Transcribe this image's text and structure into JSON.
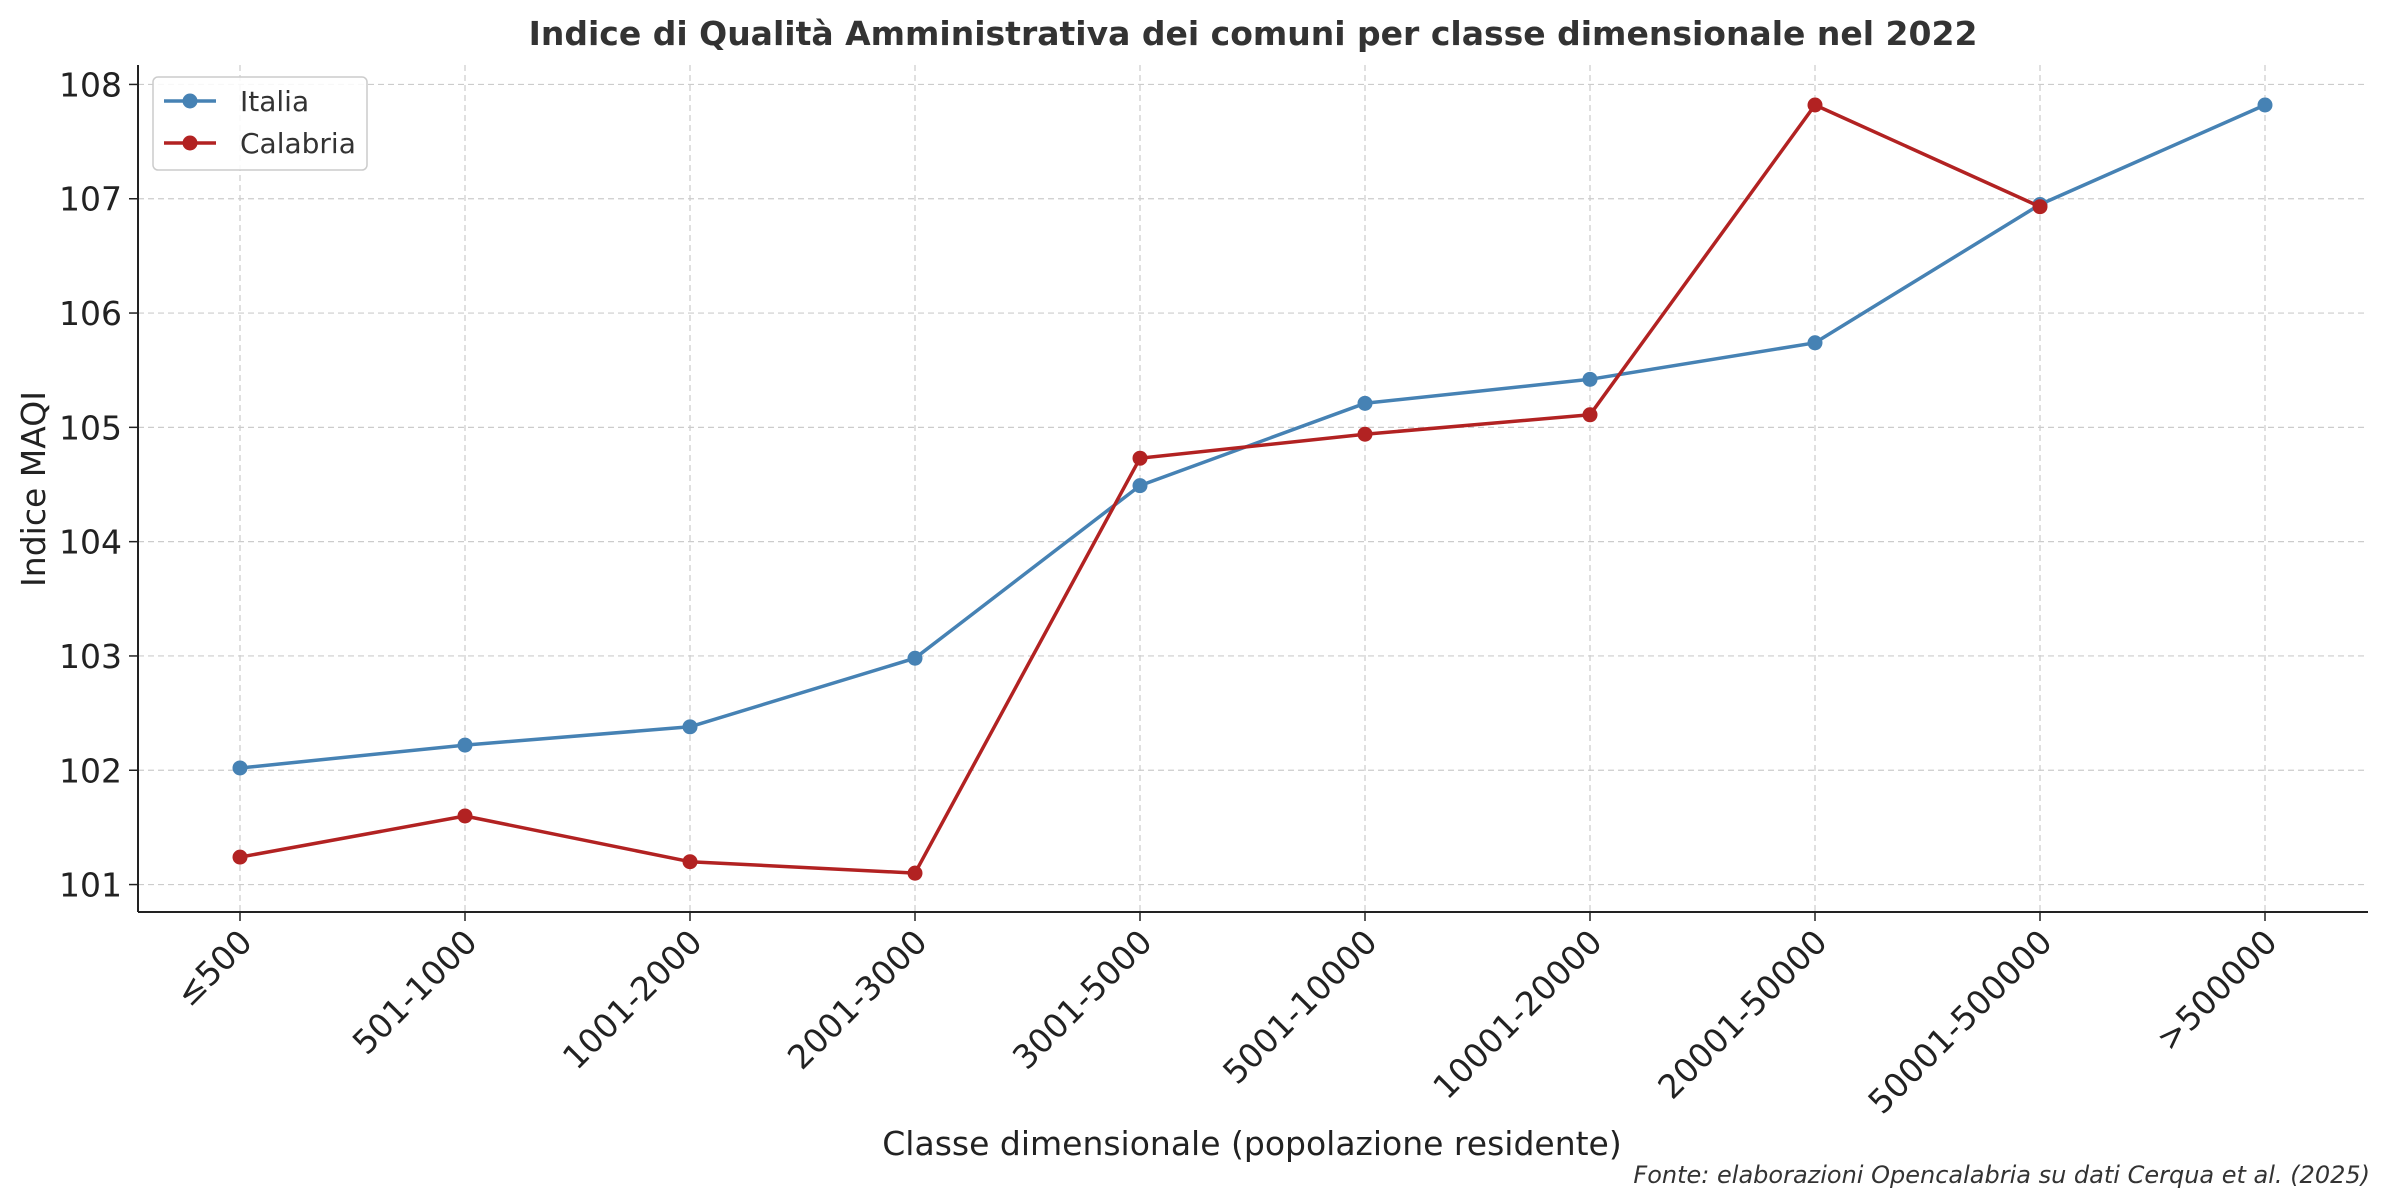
{
  "chart_data": {
    "type": "line",
    "title": "Indice di Qualità Amministrativa dei comuni per classe dimensionale nel 2022",
    "xlabel": "Classe dimensionale (popolazione residente)",
    "ylabel": "Indice MAQI",
    "categories": [
      "≤500",
      "501-1000",
      "1001-2000",
      "2001-3000",
      "3001-5000",
      "5001-10000",
      "10001-20000",
      "20001-50000",
      "50001-500000",
      ">500000"
    ],
    "y_ticks": [
      "101",
      "102",
      "103",
      "104",
      "105",
      "106",
      "107",
      "108"
    ],
    "ylim": [
      100.76,
      108.17
    ],
    "grid": true,
    "legend_position": "top-left",
    "series": [
      {
        "name": "Italia",
        "color": "#4682b4",
        "values": [
          102.02,
          102.22,
          102.38,
          102.98,
          104.49,
          105.21,
          105.42,
          105.74,
          106.95,
          107.82
        ]
      },
      {
        "name": "Calabria",
        "color": "#b22222",
        "values": [
          101.24,
          101.6,
          101.2,
          101.1,
          104.73,
          104.94,
          105.11,
          107.82,
          106.93,
          null
        ]
      }
    ],
    "source_note": "Fonte: elaborazioni Opencalabria su dati Cerqua et al. (2025)"
  }
}
